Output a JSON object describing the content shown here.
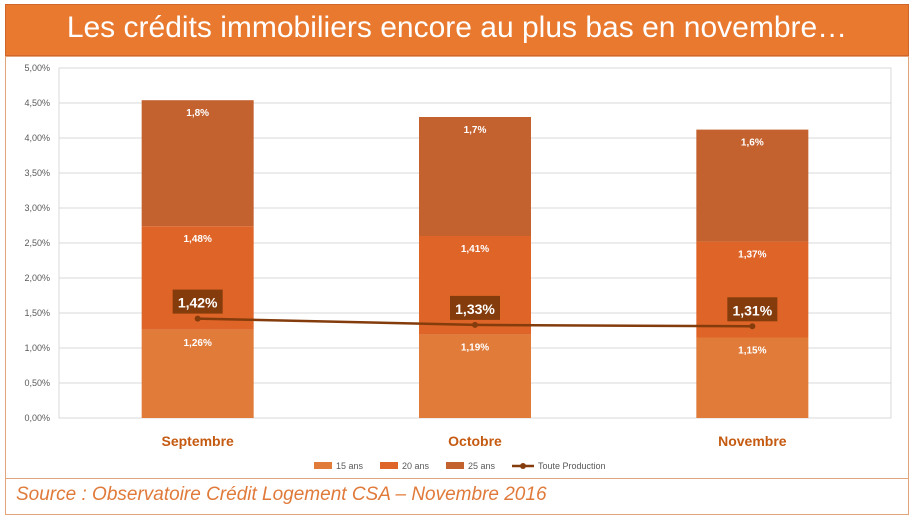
{
  "header": {
    "title": "Les crédits immobiliers encore au plus bas en novembre…"
  },
  "footer": {
    "source": "Source : Observatoire Crédit Logement CSA – Novembre 2016"
  },
  "colors": {
    "title_bg": "#e8792f",
    "s15": "#e07b39",
    "s20": "#de6427",
    "s25": "#c3612f",
    "line": "#843c0c",
    "category_label": "#c55a11",
    "grid": "#d9d9d9"
  },
  "chart_data": {
    "type": "bar",
    "stacked": true,
    "categories": [
      "Septembre",
      "Octobre",
      "Novembre"
    ],
    "series": [
      {
        "name": "15 ans",
        "values": [
          1.26,
          1.19,
          1.15
        ],
        "labels": [
          "1,26%",
          "1,19%",
          "1,15%"
        ],
        "color": "#e07b39"
      },
      {
        "name": "20 ans",
        "values": [
          1.48,
          1.41,
          1.37
        ],
        "labels": [
          "1,48%",
          "1,41%",
          "1,37%"
        ],
        "color": "#de6427"
      },
      {
        "name": "25 ans",
        "values": [
          1.8,
          1.7,
          1.6
        ],
        "labels": [
          "1,8%",
          "1,7%",
          "1,6%"
        ],
        "color": "#c3612f"
      }
    ],
    "line_series": {
      "name": "Toute Production",
      "values": [
        1.42,
        1.33,
        1.31
      ],
      "labels": [
        "1,42%",
        "1,33%",
        "1,31%"
      ],
      "color": "#843c0c"
    },
    "ylim": [
      0,
      5
    ],
    "yticks": [
      0,
      0.5,
      1,
      1.5,
      2,
      2.5,
      3,
      3.5,
      4,
      4.5,
      5
    ],
    "ytick_labels": [
      "0,00%",
      "0,50%",
      "1,00%",
      "1,50%",
      "2,00%",
      "2,50%",
      "3,00%",
      "3,50%",
      "4,00%",
      "4,50%",
      "5,00%"
    ],
    "grid": true,
    "legend": "bottom"
  }
}
